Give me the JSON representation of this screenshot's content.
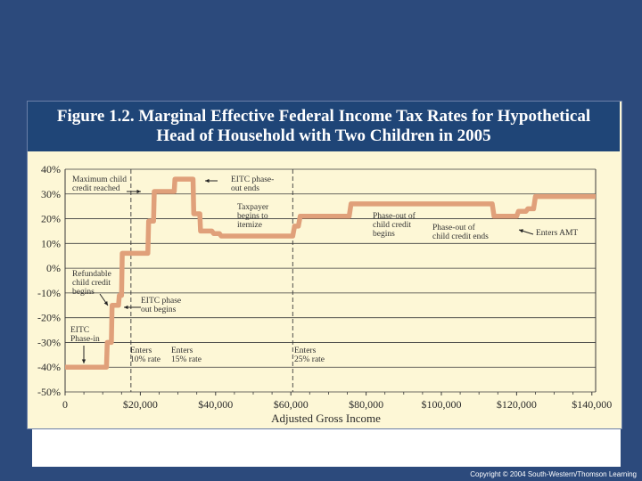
{
  "title": {
    "line1": "Figure 1.2. Marginal Effective Federal Income Tax Rates for Hypothetical",
    "line2": "Head of Household with Two Children in 2005"
  },
  "copyright": "Copyright © 2004 South-Western/Thomson Learning",
  "colors": {
    "background": "#2c4a7c",
    "title_bar": "#1f4577",
    "plot_area": "#fdf7d6",
    "line": "#e0a07a"
  },
  "chart_data": {
    "type": "line",
    "title": "Figure 1.2. Marginal Effective Federal Income Tax Rates for Hypothetical Head of Household with Two Children in 2005",
    "xlabel": "Adjusted Gross Income",
    "ylabel": "",
    "xlim": [
      0,
      141000
    ],
    "ylim": [
      -50,
      40
    ],
    "grid": "horizontal",
    "y_ticks": [
      40,
      30,
      20,
      10,
      0,
      -10,
      -20,
      -30,
      -40,
      -50
    ],
    "y_tick_labels": [
      "40%",
      "30%",
      "20%",
      "10%",
      "0%",
      "-10%",
      "-20%",
      "-30%",
      "-40%",
      "-50%"
    ],
    "x_ticks": [
      0,
      20000,
      40000,
      60000,
      80000,
      100000,
      120000,
      140000
    ],
    "x_tick_labels": [
      "0",
      "$20,000",
      "$40,000",
      "$60,000",
      "$80,000",
      "$100,000",
      "$120,000",
      "$140,000"
    ],
    "vlines": [
      17500,
      60500
    ],
    "series": [
      {
        "x": [
          0,
          11000,
          11200,
          12300,
          12500,
          14200,
          14400,
          15000,
          15200,
          22000,
          22200,
          23500,
          23700,
          26500,
          26700,
          29000,
          29200,
          34000,
          34200,
          35800,
          36000,
          39000,
          39500,
          41000,
          41500,
          58500,
          59000,
          60500,
          61000,
          62000,
          62500,
          75500,
          76000,
          113500,
          114000,
          117500,
          118000,
          120000,
          120500,
          122500,
          123000,
          124500,
          125000,
          141000
        ],
        "y": [
          -40,
          -40,
          -30,
          -30,
          -15,
          -15,
          -11,
          -11,
          6,
          6,
          19,
          19,
          31,
          31,
          31,
          31,
          36,
          36,
          22,
          22,
          15,
          15,
          14,
          14,
          13,
          13,
          13,
          13,
          17,
          17,
          21,
          21,
          26,
          26,
          21,
          21,
          21,
          21,
          23,
          23,
          24,
          24,
          29,
          29
        ]
      }
    ],
    "annotations": [
      {
        "text": [
          "Maximum child",
          "credit reached"
        ]
      },
      {
        "text": [
          "EITC phase-",
          "out ends"
        ]
      },
      {
        "text": [
          "Taxpayer",
          "begins to",
          "itemize"
        ]
      },
      {
        "text": [
          "Phase-out of",
          "child credit",
          "begins"
        ]
      },
      {
        "text": [
          "Phase-out of",
          "child credit ends"
        ]
      },
      {
        "text": [
          "Enters AMT"
        ]
      },
      {
        "text": [
          "Refundable",
          "child credit",
          "begins"
        ]
      },
      {
        "text": [
          "EITC phase",
          "out begins"
        ]
      },
      {
        "text": [
          "EITC",
          "Phase-in"
        ]
      },
      {
        "text": [
          "Enters",
          "10% rate"
        ]
      },
      {
        "text": [
          "Enters",
          "15% rate"
        ]
      },
      {
        "text": [
          "Enters",
          "25% rate"
        ]
      }
    ]
  }
}
